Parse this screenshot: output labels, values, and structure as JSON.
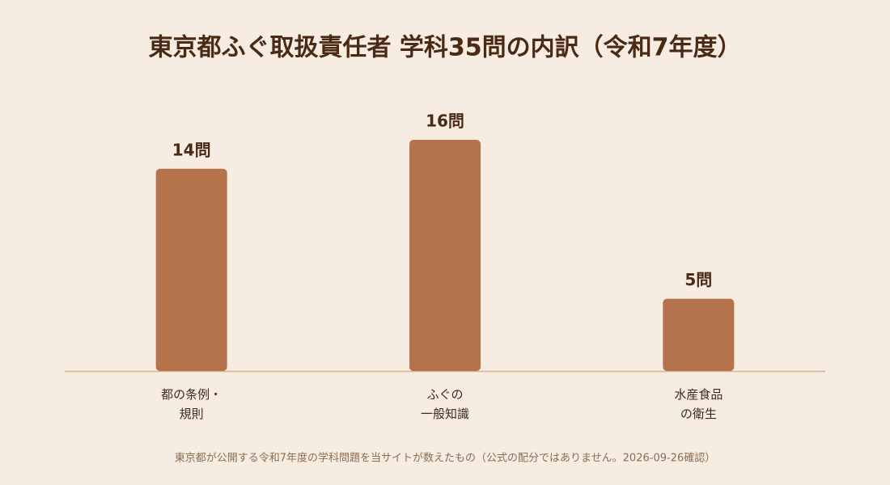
{
  "chart_data": {
    "type": "bar",
    "title": "東京都ふぐ取扱責任者 学科35問の内訳（令和7年度）",
    "categories": [
      "都の条例・\n規則",
      "ふぐの\n一般知識",
      "水産食品\nの衛生"
    ],
    "values": [
      14,
      16,
      5
    ],
    "value_labels": [
      "14問",
      "16問",
      "5問"
    ],
    "color": "#b5734b",
    "note": "東京都が公開する令和7年度の学科問題を当サイトが数えたもの（公式の配分ではありません。2026-09-26確認）"
  }
}
